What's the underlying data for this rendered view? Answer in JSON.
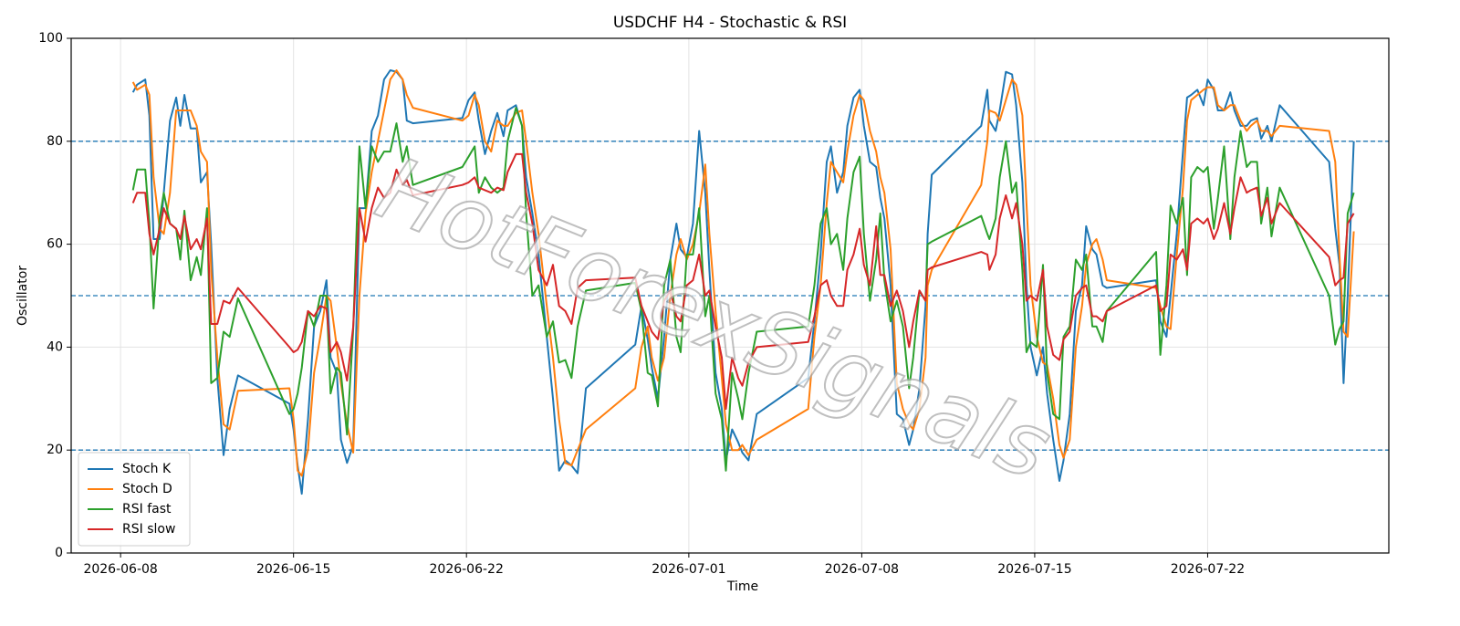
{
  "chart_data": {
    "type": "line",
    "title": "USDCHF H4 - Stochastic & RSI",
    "x_label": "Time",
    "y_label": "Oscillator",
    "watermark": "HotForexSignals",
    "xlim": [
      "2026-06-06 00:00",
      "2026-07-29 08:00"
    ],
    "xticks": [
      "2026-06-08",
      "2026-06-15",
      "2026-06-22",
      "2026-07-01",
      "2026-07-08",
      "2026-07-15",
      "2026-07-22"
    ],
    "ylim": [
      0,
      100
    ],
    "yticks": [
      0,
      20,
      40,
      60,
      80,
      100
    ],
    "grid": true,
    "legend": "lower left",
    "hlines": [
      20,
      50,
      80
    ],
    "hline_color": "#1f77b4",
    "x": [
      "2026-06-08 12:00",
      "2026-06-08 16:00",
      "2026-06-09 00:00",
      "2026-06-09 04:00",
      "2026-06-09 08:00",
      "2026-06-09 14:00",
      "2026-06-09 18:00",
      "2026-06-10 00:00",
      "2026-06-10 06:00",
      "2026-06-10 10:00",
      "2026-06-10 14:00",
      "2026-06-10 20:00",
      "2026-06-11 02:00",
      "2026-06-11 06:00",
      "2026-06-11 12:00",
      "2026-06-11 16:00",
      "2026-06-11 22:00",
      "2026-06-12 04:00",
      "2026-06-12 10:00",
      "2026-06-12 18:00",
      "2026-06-14 20:00",
      "2026-06-15 00:00",
      "2026-06-15 04:00",
      "2026-06-15 08:00",
      "2026-06-15 14:00",
      "2026-06-15 20:00",
      "2026-06-16 02:00",
      "2026-06-16 08:00",
      "2026-06-16 12:00",
      "2026-06-16 18:00",
      "2026-06-16 22:00",
      "2026-06-17 04:00",
      "2026-06-17 10:00",
      "2026-06-17 16:00",
      "2026-06-17 22:00",
      "2026-06-18 04:00",
      "2026-06-18 10:00",
      "2026-06-18 16:00",
      "2026-06-18 22:00",
      "2026-06-19 04:00",
      "2026-06-19 10:00",
      "2026-06-19 14:00",
      "2026-06-19 20:00",
      "2026-06-21 20:00",
      "2026-06-22 02:00",
      "2026-06-22 08:00",
      "2026-06-22 12:00",
      "2026-06-22 18:00",
      "2026-06-23 00:00",
      "2026-06-23 06:00",
      "2026-06-23 12:00",
      "2026-06-23 16:00",
      "2026-06-24 00:00",
      "2026-06-24 06:00",
      "2026-06-24 10:00",
      "2026-06-24 16:00",
      "2026-06-24 22:00",
      "2026-06-25 06:00",
      "2026-06-25 12:00",
      "2026-06-25 18:00",
      "2026-06-26 00:00",
      "2026-06-26 06:00",
      "2026-06-26 12:00",
      "2026-06-26 20:00",
      "2026-06-28 20:00",
      "2026-06-29 02:00",
      "2026-06-29 08:00",
      "2026-06-29 12:00",
      "2026-06-29 18:00",
      "2026-06-30 00:00",
      "2026-06-30 06:00",
      "2026-06-30 12:00",
      "2026-06-30 16:00",
      "2026-06-30 22:00",
      "2026-07-01 04:00",
      "2026-07-01 10:00",
      "2026-07-01 16:00",
      "2026-07-01 20:00",
      "2026-07-02 02:00",
      "2026-07-02 08:00",
      "2026-07-02 12:00",
      "2026-07-02 18:00",
      "2026-07-03 00:00",
      "2026-07-03 04:00",
      "2026-07-03 10:00",
      "2026-07-03 18:00",
      "2026-07-05 20:00",
      "2026-07-06 02:00",
      "2026-07-06 08:00",
      "2026-07-06 14:00",
      "2026-07-06 18:00",
      "2026-07-07 00:00",
      "2026-07-07 06:00",
      "2026-07-07 10:00",
      "2026-07-07 16:00",
      "2026-07-07 22:00",
      "2026-07-08 02:00",
      "2026-07-08 08:00",
      "2026-07-08 14:00",
      "2026-07-08 18:00",
      "2026-07-08 22:00",
      "2026-07-09 04:00",
      "2026-07-09 10:00",
      "2026-07-09 16:00",
      "2026-07-09 22:00",
      "2026-07-10 02:00",
      "2026-07-10 08:00",
      "2026-07-10 14:00",
      "2026-07-10 16:00",
      "2026-07-10 20:00",
      "2026-07-12 20:00",
      "2026-07-13 02:00",
      "2026-07-13 04:00",
      "2026-07-13 10:00",
      "2026-07-13 14:00",
      "2026-07-13 20:00",
      "2026-07-14 02:00",
      "2026-07-14 06:00",
      "2026-07-14 12:00",
      "2026-07-14 16:00",
      "2026-07-14 20:00",
      "2026-07-15 02:00",
      "2026-07-15 08:00",
      "2026-07-15 12:00",
      "2026-07-15 18:00",
      "2026-07-16 00:00",
      "2026-07-16 04:00",
      "2026-07-16 10:00",
      "2026-07-16 16:00",
      "2026-07-16 22:00",
      "2026-07-17 02:00",
      "2026-07-17 08:00",
      "2026-07-17 12:00",
      "2026-07-17 18:00",
      "2026-07-17 22:00",
      "2026-07-19 22:00",
      "2026-07-20 02:00",
      "2026-07-20 08:00",
      "2026-07-20 12:00",
      "2026-07-20 18:00",
      "2026-07-21 00:00",
      "2026-07-21 04:00",
      "2026-07-21 08:00",
      "2026-07-21 14:00",
      "2026-07-21 20:00",
      "2026-07-22 00:00",
      "2026-07-22 06:00",
      "2026-07-22 10:00",
      "2026-07-22 16:00",
      "2026-07-22 22:00",
      "2026-07-23 02:00",
      "2026-07-23 08:00",
      "2026-07-23 14:00",
      "2026-07-23 18:00",
      "2026-07-24 00:00",
      "2026-07-24 04:00",
      "2026-07-24 10:00",
      "2026-07-24 14:00",
      "2026-07-24 22:00",
      "2026-07-26 22:00",
      "2026-07-27 04:00",
      "2026-07-27 08:00",
      "2026-07-27 12:00",
      "2026-07-27 16:00",
      "2026-07-27 22:00"
    ],
    "series": [
      {
        "name": "Stoch K",
        "color": "#1f77b4",
        "values": [
          89.5,
          91,
          92,
          85,
          61,
          61,
          70,
          84,
          88.5,
          83,
          89,
          82.5,
          82.5,
          72,
          74,
          60,
          34,
          19,
          28,
          34.5,
          29,
          24,
          17,
          11.5,
          26,
          44,
          47,
          53,
          38,
          35,
          22,
          17.5,
          21,
          67,
          67,
          82,
          85,
          92,
          93.8,
          93.5,
          92,
          84,
          83.5,
          84.5,
          88,
          89.5,
          84,
          77.5,
          82,
          85.5,
          81,
          86,
          87,
          83,
          73,
          66,
          58,
          42,
          30,
          16,
          18,
          17,
          15.5,
          32,
          40.5,
          48,
          41.5,
          36,
          30,
          42,
          57,
          64,
          59,
          57.5,
          64,
          82,
          70,
          55,
          35,
          28,
          18,
          24,
          21.5,
          19.5,
          18,
          27,
          34,
          45,
          58,
          76,
          79,
          70,
          74,
          83,
          88.5,
          90,
          83,
          76,
          75,
          69,
          65,
          52,
          27,
          26,
          21,
          24,
          32,
          48,
          62,
          73.5,
          83,
          90,
          84,
          82,
          86,
          93.5,
          93,
          87,
          72,
          52,
          40,
          34.5,
          40,
          31,
          22,
          14,
          18,
          27,
          47,
          52,
          63.5,
          59,
          58,
          52,
          51.5,
          53,
          45,
          42,
          50,
          62,
          78,
          88.5,
          89,
          90,
          87,
          92,
          90,
          86,
          86,
          89.5,
          86,
          83,
          83,
          84,
          84.5,
          80.5,
          83,
          80,
          87,
          76,
          63,
          56,
          33,
          50,
          80
        ]
      },
      {
        "name": "Stoch D",
        "color": "#ff7f0e",
        "values": [
          91.5,
          90,
          91,
          89,
          73,
          63,
          62,
          70,
          86,
          86,
          86,
          86,
          83,
          78,
          76,
          55,
          38,
          25,
          24,
          31.5,
          32,
          26,
          16,
          15,
          20,
          35,
          42,
          50,
          49,
          40,
          33,
          25,
          19.5,
          50,
          66,
          74,
          80,
          86,
          92,
          93.8,
          92,
          89,
          86.5,
          84,
          85,
          89,
          87,
          80,
          78,
          84,
          83,
          83,
          85.5,
          86,
          80,
          70,
          62,
          48,
          38,
          26,
          17.5,
          17,
          20,
          24,
          32,
          40,
          44,
          38,
          33.5,
          38,
          50,
          58,
          61,
          57,
          60,
          66,
          75.5,
          62,
          47,
          34,
          25,
          20,
          20,
          21,
          19,
          22,
          28,
          42,
          52,
          68,
          76,
          74,
          72,
          78,
          85,
          89,
          88,
          82,
          78,
          73,
          70,
          59,
          33,
          28,
          25,
          24,
          28,
          38,
          52,
          55,
          71.5,
          80,
          86,
          85.5,
          84,
          88,
          92,
          91,
          85,
          68,
          52,
          42,
          37,
          36.5,
          30,
          21,
          18.5,
          22,
          40,
          48,
          56,
          60,
          61,
          57,
          53,
          51.5,
          48,
          44,
          43.5,
          58,
          71,
          84,
          88,
          89,
          90,
          90.5,
          90.5,
          87,
          86,
          87,
          87,
          84,
          82,
          83,
          84,
          82,
          82,
          81,
          83,
          82,
          76,
          58,
          43,
          42,
          62.5
        ]
      },
      {
        "name": "RSI fast",
        "color": "#2ca02c",
        "values": [
          70.5,
          74.5,
          74.5,
          64,
          47.5,
          65,
          70,
          64,
          63,
          57,
          66.5,
          53,
          57.5,
          54,
          67,
          33,
          34,
          43,
          42,
          49.5,
          27,
          28,
          31,
          36,
          47,
          44,
          50,
          50,
          31,
          36,
          35,
          23,
          43.5,
          79,
          67,
          79,
          76,
          78,
          78,
          83.5,
          76,
          79,
          71.5,
          75,
          77,
          79,
          70,
          73,
          71,
          70,
          71,
          80,
          86.5,
          83,
          66,
          50,
          52,
          42,
          45,
          37,
          37.5,
          34,
          44,
          51,
          52.5,
          47,
          35,
          34.5,
          28.5,
          52,
          57,
          42,
          39,
          58,
          58,
          67,
          46,
          50,
          31,
          26,
          16,
          35,
          30,
          26,
          35,
          43,
          44,
          52,
          64,
          67,
          60,
          62,
          55,
          65,
          74,
          77,
          62,
          49,
          57,
          66,
          53,
          45,
          49,
          44,
          32,
          38,
          51,
          49,
          60,
          60.5,
          65.5,
          62,
          61,
          65,
          73,
          80,
          70,
          72,
          55,
          39,
          41,
          40,
          56,
          35,
          27,
          26,
          42,
          44,
          57,
          55,
          58,
          44,
          44,
          41,
          47,
          58.5,
          38.5,
          52,
          67.5,
          64,
          69,
          54,
          73,
          75,
          74,
          75,
          63,
          69,
          79,
          61,
          73,
          82,
          75,
          76,
          76,
          64,
          71,
          61.5,
          71,
          50,
          40.5,
          43.5,
          45,
          66,
          70
        ]
      },
      {
        "name": "RSI slow",
        "color": "#d62728",
        "values": [
          68,
          70,
          70,
          62,
          58,
          63,
          67,
          64,
          63,
          61,
          65.5,
          59,
          61,
          59,
          65,
          44.5,
          44.5,
          49,
          48.5,
          51.5,
          40,
          39,
          39.5,
          41,
          47,
          46,
          48,
          47.5,
          39,
          41,
          39,
          33.5,
          44,
          67,
          60.5,
          67,
          71,
          69,
          70,
          74.5,
          71.5,
          72.5,
          69.5,
          71.5,
          72,
          73,
          71,
          70.5,
          70,
          71,
          70.5,
          74,
          77.5,
          77.5,
          70,
          64,
          55,
          52,
          56,
          48,
          47,
          44.5,
          51.5,
          53,
          53.5,
          48,
          45,
          43,
          41.5,
          49,
          51,
          46,
          45,
          52,
          53,
          58,
          50,
          51,
          44,
          38,
          28,
          38,
          34,
          32.5,
          37,
          40,
          41,
          46,
          52,
          53,
          50,
          48,
          48,
          55,
          58,
          63,
          56,
          52,
          63.5,
          54,
          54,
          48,
          51,
          47,
          40,
          45,
          51,
          49,
          55,
          55.5,
          58.5,
          58,
          55,
          58,
          65,
          69.5,
          65,
          68,
          60,
          49,
          50,
          49,
          55,
          44,
          38.5,
          37.5,
          41.5,
          43,
          50,
          51.5,
          52,
          46,
          46,
          45,
          47,
          52,
          47,
          48,
          58,
          57,
          59,
          55,
          64,
          65,
          64,
          65,
          61,
          63,
          68,
          62,
          67,
          73,
          70,
          70.5,
          71,
          65.5,
          69,
          64,
          68,
          57.5,
          52,
          53,
          53.5,
          64,
          66
        ]
      }
    ]
  }
}
